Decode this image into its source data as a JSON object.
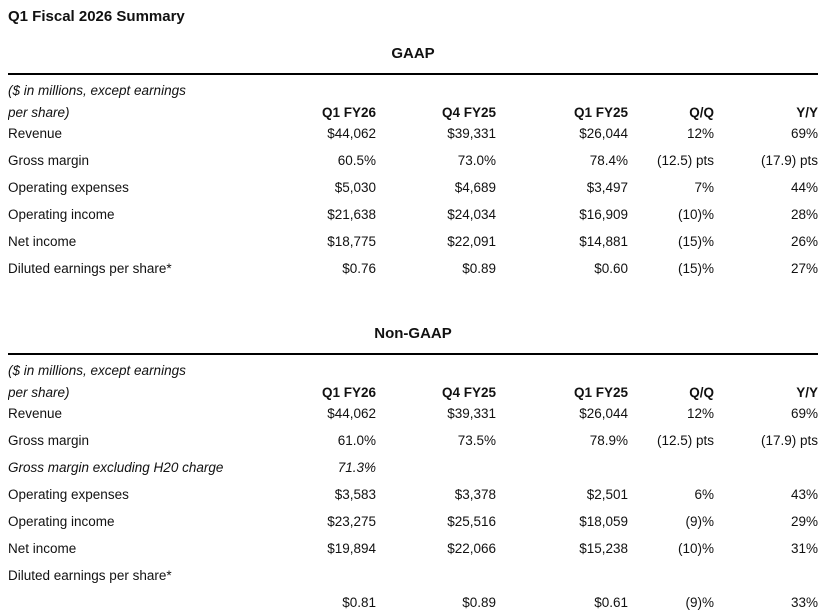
{
  "page": {
    "title": "Q1 Fiscal 2026 Summary"
  },
  "styles": {
    "text_color": "#111111",
    "rule_color": "#000000",
    "background": "#ffffff"
  },
  "tables": [
    {
      "heading": "GAAP",
      "unit_note": [
        "($ in millions, except earnings",
        "per share)"
      ],
      "columns": [
        "Q1 FY26",
        "Q4 FY25",
        "Q1 FY25",
        "Q/Q",
        "Y/Y"
      ],
      "rows": [
        {
          "label": "Revenue",
          "italic": false,
          "values": [
            "$44,062",
            "$39,331",
            "$26,044",
            "12%",
            "69%"
          ]
        },
        {
          "label": "Gross margin",
          "italic": false,
          "values": [
            "60.5%",
            "73.0%",
            "78.4%",
            "(12.5) pts",
            "(17.9) pts"
          ]
        },
        {
          "label": "Operating expenses",
          "italic": false,
          "values": [
            "$5,030",
            "$4,689",
            "$3,497",
            "7%",
            "44%"
          ]
        },
        {
          "label": "Operating income",
          "italic": false,
          "values": [
            "$21,638",
            "$24,034",
            "$16,909",
            "(10)%",
            "28%"
          ]
        },
        {
          "label": "Net income",
          "italic": false,
          "values": [
            "$18,775",
            "$22,091",
            "$14,881",
            "(15)%",
            "26%"
          ]
        },
        {
          "label": "Diluted earnings per share*",
          "italic": false,
          "values": [
            "$0.76",
            "$0.89",
            "$0.60",
            "(15)%",
            "27%"
          ]
        }
      ]
    },
    {
      "heading": "Non-GAAP",
      "unit_note": [
        "($ in millions, except earnings",
        "per share)"
      ],
      "columns": [
        "Q1 FY26",
        "Q4 FY25",
        "Q1 FY25",
        "Q/Q",
        "Y/Y"
      ],
      "rows": [
        {
          "label": "Revenue",
          "italic": false,
          "values": [
            "$44,062",
            "$39,331",
            "$26,044",
            "12%",
            "69%"
          ]
        },
        {
          "label": "Gross margin",
          "italic": false,
          "values": [
            "61.0%",
            "73.5%",
            "78.9%",
            "(12.5) pts",
            "(17.9) pts"
          ]
        },
        {
          "label": "Gross margin excluding H20 charge",
          "italic": true,
          "values": [
            "71.3%",
            "",
            "",
            "",
            ""
          ]
        },
        {
          "label": "Operating expenses",
          "italic": false,
          "values": [
            "$3,583",
            "$3,378",
            "$2,501",
            "6%",
            "43%"
          ]
        },
        {
          "label": "Operating income",
          "italic": false,
          "values": [
            "$23,275",
            "$25,516",
            "$18,059",
            "(9)%",
            "29%"
          ]
        },
        {
          "label": "Net income",
          "italic": false,
          "values": [
            "$19,894",
            "$22,066",
            "$15,238",
            "(10)%",
            "31%"
          ]
        },
        {
          "label": "Diluted earnings per share*",
          "italic": false,
          "values": [
            "",
            "",
            "",
            "",
            ""
          ]
        },
        {
          "label": "",
          "italic": false,
          "values": [
            "$0.81",
            "$0.89",
            "$0.61",
            "(9)%",
            "33%"
          ]
        }
      ]
    }
  ]
}
